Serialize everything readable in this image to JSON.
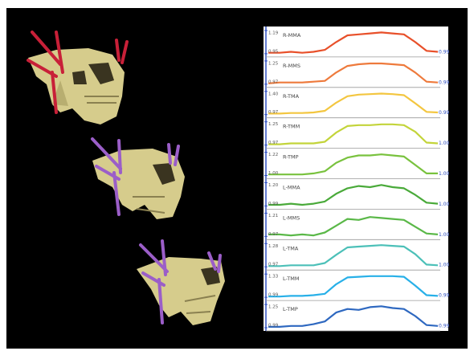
{
  "chart_data": [
    {
      "type": "line",
      "title": "R-MMA",
      "color": "#e8502a",
      "x": [
        0,
        1,
        2,
        3,
        4,
        5,
        6,
        7,
        8,
        9,
        10,
        11,
        12,
        13,
        14,
        15
      ],
      "xlim": [
        0,
        15
      ],
      "ylim": [
        0.95,
        1.19
      ],
      "yticks": [
        0.95,
        1.19
      ],
      "annotation": "0.99",
      "values": [
        0.96,
        0.96,
        0.97,
        0.96,
        0.97,
        0.99,
        1.07,
        1.14,
        1.15,
        1.16,
        1.17,
        1.16,
        1.15,
        1.07,
        0.98,
        0.97
      ]
    },
    {
      "type": "line",
      "title": "R-MMS",
      "color": "#ee7a3c",
      "x": [
        0,
        1,
        2,
        3,
        4,
        5,
        6,
        7,
        8,
        9,
        10,
        11,
        12,
        13,
        14,
        15
      ],
      "xlim": [
        0,
        15
      ],
      "ylim": [
        0.97,
        1.25
      ],
      "yticks": [
        0.97,
        1.25
      ],
      "annotation": "0.99",
      "values": [
        0.98,
        0.99,
        0.99,
        0.99,
        1.0,
        1.01,
        1.11,
        1.19,
        1.21,
        1.22,
        1.22,
        1.21,
        1.2,
        1.11,
        1.0,
        0.99
      ]
    },
    {
      "type": "line",
      "title": "R-TMA",
      "color": "#f3c640",
      "x": [
        0,
        1,
        2,
        3,
        4,
        5,
        6,
        7,
        8,
        9,
        10,
        11,
        12,
        13,
        14,
        15
      ],
      "xlim": [
        0,
        15
      ],
      "ylim": [
        0.97,
        1.4
      ],
      "yticks": [
        0.97,
        {
          "value": 1.4,
          "label": "1.40"
        }
      ],
      "annotation": "0.99",
      "values": [
        0.99,
        0.99,
        1.0,
        1.0,
        1.01,
        1.04,
        1.19,
        1.31,
        1.34,
        1.35,
        1.36,
        1.35,
        1.33,
        1.18,
        1.02,
        1.01
      ]
    },
    {
      "type": "line",
      "title": "R-TMM",
      "color": "#c3d43a",
      "x": [
        0,
        1,
        2,
        3,
        4,
        5,
        6,
        7,
        8,
        9,
        10,
        11,
        12,
        13,
        14,
        15
      ],
      "xlim": [
        0,
        15
      ],
      "ylim": [
        0.97,
        1.25
      ],
      "yticks": [
        0.97,
        1.25
      ],
      "annotation": "1.00",
      "values": [
        0.98,
        0.98,
        0.99,
        0.99,
        0.99,
        1.01,
        1.12,
        1.2,
        1.21,
        1.21,
        1.22,
        1.22,
        1.21,
        1.13,
        1.0,
        0.99
      ]
    },
    {
      "type": "line",
      "title": "R-TMP",
      "color": "#79c23e",
      "x": [
        0,
        1,
        2,
        3,
        4,
        5,
        6,
        7,
        8,
        9,
        10,
        11,
        12,
        13,
        14,
        15
      ],
      "xlim": [
        0,
        15
      ],
      "ylim": [
        1.0,
        1.22
      ],
      "yticks": [
        {
          "value": 1.0,
          "label": "1.00"
        },
        1.22
      ],
      "annotation": "1.00",
      "values": [
        1.01,
        1.01,
        1.01,
        1.01,
        1.02,
        1.04,
        1.12,
        1.17,
        1.19,
        1.19,
        1.2,
        1.19,
        1.18,
        1.1,
        1.02,
        1.02
      ]
    },
    {
      "type": "line",
      "title": "L-MMA",
      "color": "#4aaa3a",
      "x": [
        0,
        1,
        2,
        3,
        4,
        5,
        6,
        7,
        8,
        9,
        10,
        11,
        12,
        13,
        14,
        15
      ],
      "xlim": [
        0,
        15
      ],
      "ylim": [
        0.99,
        1.2
      ],
      "yticks": [
        0.99,
        {
          "value": 1.2,
          "label": "1.20"
        }
      ],
      "annotation": "1.00",
      "values": [
        1.0,
        1.0,
        1.01,
        1.0,
        1.01,
        1.03,
        1.1,
        1.15,
        1.17,
        1.16,
        1.18,
        1.16,
        1.15,
        1.09,
        1.02,
        1.01
      ]
    },
    {
      "type": "line",
      "title": "L-MMS",
      "color": "#5ab848",
      "x": [
        0,
        1,
        2,
        3,
        4,
        5,
        6,
        7,
        8,
        9,
        10,
        11,
        12,
        13,
        14,
        15
      ],
      "xlim": [
        0,
        15
      ],
      "ylim": [
        0.97,
        1.21
      ],
      "yticks": [
        0.97,
        1.21
      ],
      "annotation": "1.00",
      "values": [
        0.99,
        0.99,
        0.98,
        0.99,
        0.98,
        1.01,
        1.08,
        1.15,
        1.14,
        1.17,
        1.16,
        1.15,
        1.14,
        1.07,
        1.0,
        0.99
      ]
    },
    {
      "type": "line",
      "title": "L-TMA",
      "color": "#4cc0b8",
      "x": [
        0,
        1,
        2,
        3,
        4,
        5,
        6,
        7,
        8,
        9,
        10,
        11,
        12,
        13,
        14,
        15
      ],
      "xlim": [
        0,
        15
      ],
      "ylim": [
        0.97,
        1.28
      ],
      "yticks": [
        0.97,
        1.28
      ],
      "annotation": "1.00",
      "values": [
        0.98,
        0.98,
        0.99,
        0.99,
        0.99,
        1.02,
        1.13,
        1.23,
        1.24,
        1.25,
        1.26,
        1.25,
        1.24,
        1.14,
        1.0,
        0.99
      ]
    },
    {
      "type": "line",
      "title": "L-TMM",
      "color": "#28b0e8",
      "x": [
        0,
        1,
        2,
        3,
        4,
        5,
        6,
        7,
        8,
        9,
        10,
        11,
        12,
        13,
        14,
        15
      ],
      "xlim": [
        0,
        15
      ],
      "ylim": [
        0.99,
        1.33
      ],
      "yticks": [
        0.99,
        1.33
      ],
      "annotation": "0.99",
      "values": [
        1.0,
        1.0,
        1.01,
        1.01,
        1.02,
        1.04,
        1.18,
        1.28,
        1.29,
        1.3,
        1.3,
        1.3,
        1.29,
        1.16,
        1.02,
        1.01
      ]
    },
    {
      "type": "line",
      "title": "L-TMP",
      "color": "#2e68c0",
      "x": [
        0,
        1,
        2,
        3,
        4,
        5,
        6,
        7,
        8,
        9,
        10,
        11,
        12,
        13,
        14,
        15
      ],
      "xlim": [
        0,
        15
      ],
      "ylim": [
        0.99,
        1.25
      ],
      "yticks": [
        0.99,
        1.25
      ],
      "annotation": "0.99",
      "values": [
        1.0,
        1.0,
        1.01,
        1.01,
        1.03,
        1.06,
        1.16,
        1.2,
        1.19,
        1.22,
        1.23,
        1.21,
        1.2,
        1.12,
        1.02,
        1.01
      ]
    }
  ]
}
